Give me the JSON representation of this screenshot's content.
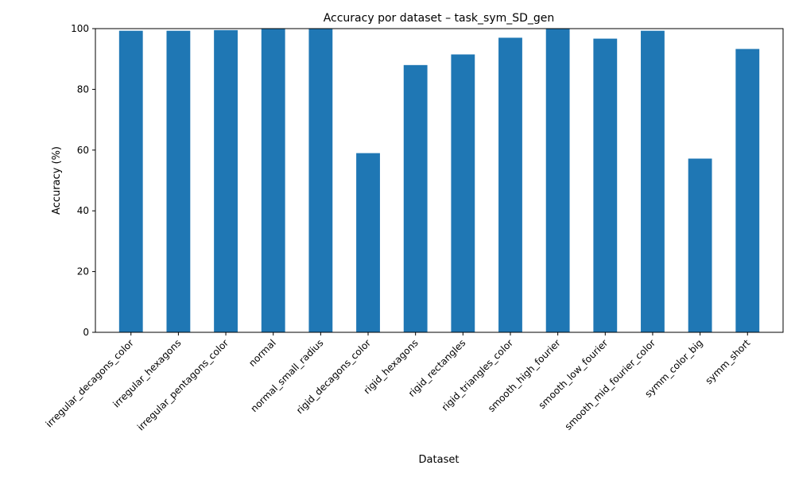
{
  "chart_data": {
    "type": "bar",
    "title": "Accuracy por dataset – task_sym_SD_gen",
    "xlabel": "Dataset",
    "ylabel": "Accuracy (%)",
    "ylim": [
      0,
      100
    ],
    "yticks": [
      0,
      20,
      40,
      60,
      80,
      100
    ],
    "grid": false,
    "legend": "none",
    "bar_color": "#1f77b4",
    "categories": [
      "irregular_decagons_color",
      "irregular_hexagons",
      "irregular_pentagons_color",
      "normal",
      "normal_small_radius",
      "rigid_decagons_color",
      "rigid_hexagons",
      "rigid_rectangles",
      "rigid_triangles_color",
      "smooth_high_fourier",
      "smooth_low_fourier",
      "smooth_mid_fourier_color",
      "symm_color_big",
      "symm_short"
    ],
    "values": [
      99.3,
      99.3,
      99.5,
      100.0,
      100.0,
      59.0,
      88.0,
      91.5,
      97.0,
      100.0,
      96.7,
      99.3,
      57.2,
      93.3
    ]
  }
}
